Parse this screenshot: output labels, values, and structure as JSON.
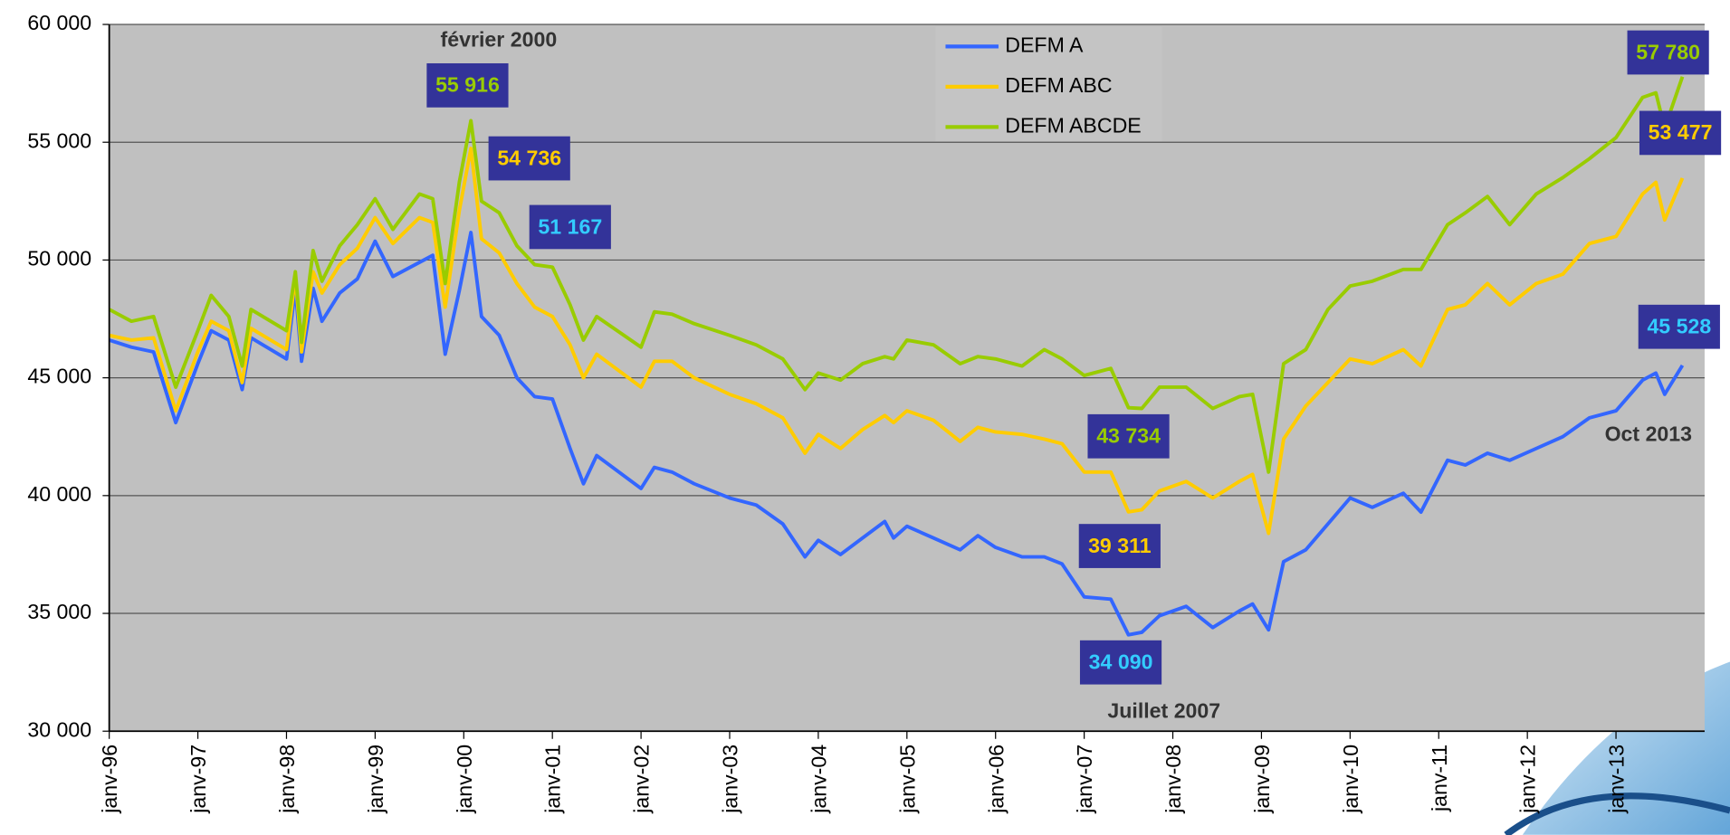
{
  "chart_data": {
    "type": "line",
    "x": [
      1996,
      1996.25,
      1996.5,
      1996.75,
      1997,
      1997.15,
      1997.35,
      1997.5,
      1997.6,
      1998,
      1998.1,
      1998.17,
      1998.3,
      1998.4,
      1998.6,
      1998.8,
      1999,
      1999.2,
      1999.5,
      1999.65,
      1999.79,
      1999.95,
      2000.08,
      2000.2,
      2000.4,
      2000.6,
      2000.8,
      2001,
      2001.2,
      2001.35,
      2001.5,
      2002,
      2002.15,
      2002.35,
      2002.6,
      2003,
      2003.3,
      2003.6,
      2003.85,
      2004,
      2004.25,
      2004.5,
      2004.75,
      2004.85,
      2005,
      2005.3,
      2005.6,
      2005.8,
      2006,
      2006.3,
      2006.55,
      2006.75,
      2007,
      2007.3,
      2007.5,
      2007.65,
      2007.85,
      2008.15,
      2008.45,
      2008.75,
      2008.9,
      2009.08,
      2009.25,
      2009.5,
      2009.75,
      2010,
      2010.25,
      2010.6,
      2010.8,
      2011.1,
      2011.3,
      2011.55,
      2011.8,
      2012.1,
      2012.4,
      2012.7,
      2013,
      2013.3,
      2013.45,
      2013.55,
      2013.75
    ],
    "series": [
      {
        "name": "DEFM A",
        "color": "#3366ff",
        "values": [
          46600,
          46300,
          46100,
          43100,
          45600,
          47000,
          46600,
          44500,
          46700,
          45800,
          48800,
          45700,
          48800,
          47400,
          48600,
          49200,
          50800,
          49300,
          49900,
          50200,
          46000,
          48700,
          51167,
          47600,
          46800,
          45000,
          44200,
          44100,
          42000,
          40500,
          41700,
          40300,
          41200,
          41000,
          40500,
          39900,
          39600,
          38800,
          37400,
          38100,
          37500,
          38200,
          38900,
          38200,
          38700,
          38200,
          37700,
          38300,
          37800,
          37400,
          37400,
          37100,
          35700,
          35600,
          34090,
          34200,
          34900,
          35300,
          34400,
          35100,
          35400,
          34300,
          37200,
          37700,
          38800,
          39900,
          39500,
          40100,
          39300,
          41500,
          41300,
          41800,
          41500,
          42000,
          42500,
          43300,
          43600,
          44900,
          45200,
          44300,
          45528
        ],
        "value_labels": [
          null,
          null,
          null,
          null,
          null,
          null,
          null,
          null,
          null,
          null,
          null,
          null,
          null,
          null,
          null,
          null,
          null,
          null,
          null,
          null,
          null,
          null,
          "51 167",
          null,
          null,
          null,
          null,
          null,
          null,
          null,
          null,
          null,
          null,
          null,
          null,
          null,
          null,
          null,
          null,
          null,
          null,
          null,
          null,
          null,
          null,
          null,
          null,
          null,
          null,
          null,
          null,
          null,
          null,
          null,
          "34 090",
          null,
          null,
          null,
          null,
          null,
          null,
          null,
          null,
          null,
          null,
          null,
          null,
          null,
          null,
          null,
          null,
          null,
          null,
          null,
          null,
          null,
          null,
          null,
          null,
          null,
          "45 528"
        ]
      },
      {
        "name": "DEFM ABC",
        "color": "#ffcc00",
        "values": [
          46800,
          46600,
          46700,
          43600,
          46100,
          47400,
          47000,
          44800,
          47100,
          46200,
          49300,
          46100,
          49500,
          48600,
          49800,
          50500,
          51800,
          50700,
          51800,
          51600,
          48000,
          52100,
          54736,
          50900,
          50300,
          49000,
          48000,
          47600,
          46400,
          45000,
          46000,
          44600,
          45700,
          45700,
          45000,
          44300,
          43900,
          43300,
          41800,
          42600,
          42000,
          42800,
          43400,
          43100,
          43600,
          43200,
          42300,
          42900,
          42700,
          42600,
          42400,
          42200,
          41000,
          41000,
          39311,
          39400,
          40200,
          40600,
          39900,
          40600,
          40900,
          38400,
          42400,
          43800,
          44800,
          45800,
          45600,
          46200,
          45500,
          47900,
          48100,
          49000,
          48100,
          49000,
          49400,
          50700,
          51000,
          52800,
          53300,
          51700,
          53477
        ],
        "value_labels": [
          null,
          null,
          null,
          null,
          null,
          null,
          null,
          null,
          null,
          null,
          null,
          null,
          null,
          null,
          null,
          null,
          null,
          null,
          null,
          null,
          null,
          null,
          "54 736",
          null,
          null,
          null,
          null,
          null,
          null,
          null,
          null,
          null,
          null,
          null,
          null,
          null,
          null,
          null,
          null,
          null,
          null,
          null,
          null,
          null,
          null,
          null,
          null,
          null,
          null,
          null,
          null,
          null,
          null,
          null,
          "39 311",
          null,
          null,
          null,
          null,
          null,
          null,
          null,
          null,
          null,
          null,
          null,
          null,
          null,
          null,
          null,
          null,
          null,
          null,
          null,
          null,
          null,
          null,
          null,
          null,
          null,
          "53 477"
        ]
      },
      {
        "name": "DEFM ABCDE",
        "color": "#99cc00",
        "values": [
          47900,
          47400,
          47600,
          44600,
          47000,
          48500,
          47600,
          45500,
          47900,
          47000,
          49500,
          46500,
          50400,
          49100,
          50600,
          51500,
          52600,
          51300,
          52800,
          52600,
          49000,
          53300,
          55916,
          52500,
          52000,
          50600,
          49800,
          49700,
          48100,
          46600,
          47600,
          46300,
          47800,
          47700,
          47300,
          46800,
          46400,
          45800,
          44500,
          45200,
          44900,
          45600,
          45900,
          45800,
          46600,
          46400,
          45600,
          45900,
          45800,
          45500,
          46200,
          45800,
          45100,
          45400,
          43734,
          43700,
          44600,
          44600,
          43700,
          44200,
          44300,
          41000,
          45600,
          46200,
          47900,
          48900,
          49100,
          49600,
          49600,
          51500,
          52000,
          52700,
          51500,
          52800,
          53500,
          54300,
          55200,
          56900,
          57100,
          55600,
          57780
        ],
        "value_labels": [
          null,
          null,
          null,
          null,
          null,
          null,
          null,
          null,
          null,
          null,
          null,
          null,
          null,
          null,
          null,
          null,
          null,
          null,
          null,
          null,
          null,
          null,
          "55 916",
          null,
          null,
          null,
          null,
          null,
          null,
          null,
          null,
          null,
          null,
          null,
          null,
          null,
          null,
          null,
          null,
          null,
          null,
          null,
          null,
          null,
          null,
          null,
          null,
          null,
          null,
          null,
          null,
          null,
          null,
          null,
          "43 734",
          null,
          null,
          null,
          null,
          null,
          null,
          null,
          null,
          null,
          null,
          null,
          null,
          null,
          null,
          null,
          null,
          null,
          null,
          null,
          null,
          null,
          null,
          null,
          null,
          null,
          "57 780"
        ]
      }
    ],
    "annotations": [
      "février 2000",
      "Juillet 2007",
      "Oct 2013"
    ],
    "xlim": [
      1996,
      2014
    ],
    "xticks": [
      {
        "value": 1996,
        "label": "janv-96"
      },
      {
        "value": 1997,
        "label": "janv-97"
      },
      {
        "value": 1998,
        "label": "janv-98"
      },
      {
        "value": 1999,
        "label": "janv-99"
      },
      {
        "value": 2000,
        "label": "janv-00"
      },
      {
        "value": 2001,
        "label": "janv-01"
      },
      {
        "value": 2002,
        "label": "janv-02"
      },
      {
        "value": 2003,
        "label": "janv-03"
      },
      {
        "value": 2004,
        "label": "janv-04"
      },
      {
        "value": 2005,
        "label": "janv-05"
      },
      {
        "value": 2006,
        "label": "janv-06"
      },
      {
        "value": 2007,
        "label": "janv-07"
      },
      {
        "value": 2008,
        "label": "janv-08"
      },
      {
        "value": 2009,
        "label": "janv-09"
      },
      {
        "value": 2010,
        "label": "janv-10"
      },
      {
        "value": 2011,
        "label": "janv-11"
      },
      {
        "value": 2012,
        "label": "janv-12"
      },
      {
        "value": 2013,
        "label": "janv-13"
      }
    ],
    "ylim": [
      30000,
      60000
    ],
    "yticks": [
      {
        "value": 30000,
        "label": "30 000"
      },
      {
        "value": 35000,
        "label": "35 000"
      },
      {
        "value": 40000,
        "label": "40 000"
      },
      {
        "value": 45000,
        "label": "45 000"
      },
      {
        "value": 50000,
        "label": "50 000"
      },
      {
        "value": 55000,
        "label": "55 000"
      },
      {
        "value": 60000,
        "label": "60 000"
      }
    ],
    "grid": true
  }
}
